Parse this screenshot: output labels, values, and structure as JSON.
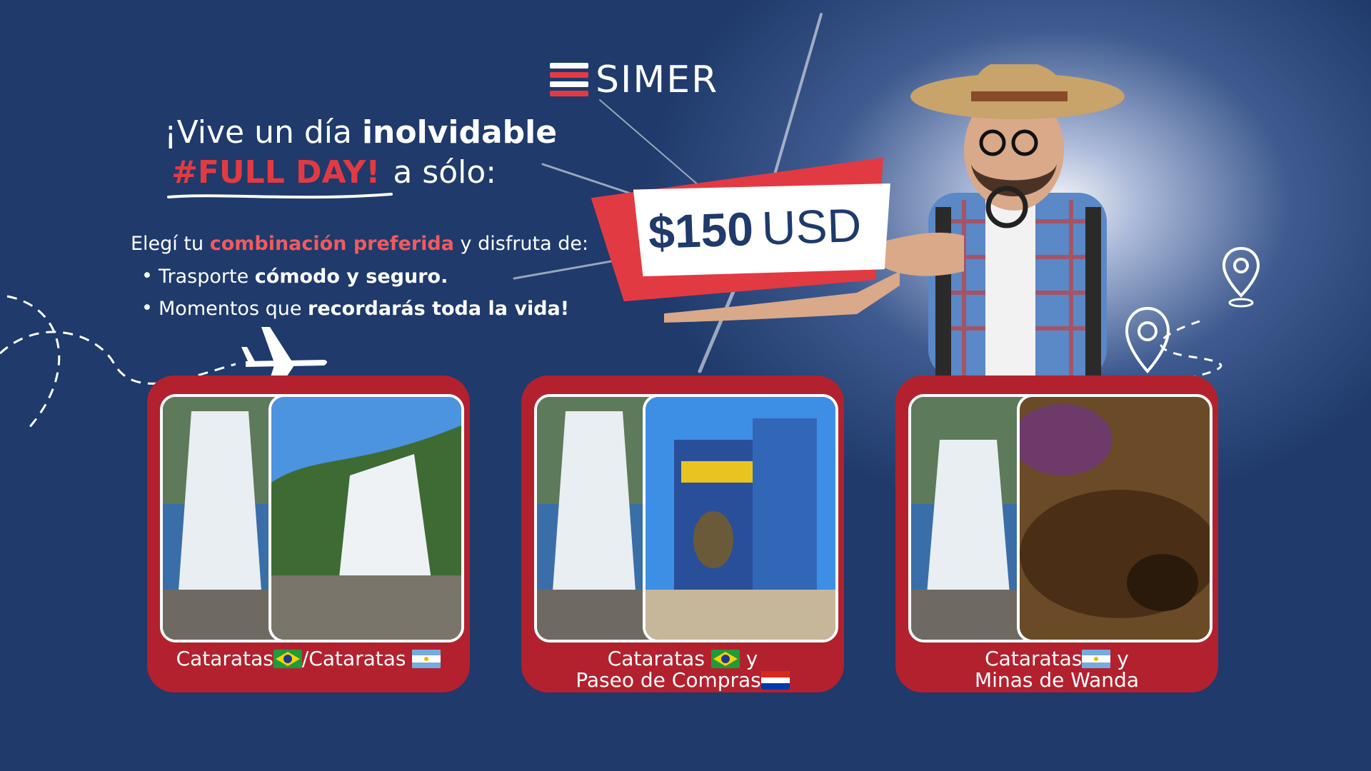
{
  "brand": {
    "name": "SIMER"
  },
  "headline": {
    "line1_a": "¡Vive un día ",
    "line1_b": "inolvidable",
    "tag": "#FULL DAY!",
    "line2_b": "a sólo:"
  },
  "price": {
    "amount": "$150",
    "currency": "USD"
  },
  "description": {
    "a": "Elegí tu ",
    "b": "combinación preferida",
    "c": " y disfruta de:"
  },
  "bullets": [
    {
      "a": "Trasporte ",
      "b": "cómodo y seguro."
    },
    {
      "a": "Momentos que ",
      "b": "recordarás toda la vida!"
    }
  ],
  "cards": [
    {
      "line1": "Cataratas",
      "sep": "/Cataratas",
      "line2": ""
    },
    {
      "line1": "Cataratas",
      "y": "y",
      "line2": "Paseo de Compras"
    },
    {
      "line1": "Cataratas",
      "y": "y",
      "line2": "Minas de Wanda"
    }
  ],
  "colors": {
    "background": "#1f3a6b",
    "accent": "#e23a42",
    "card": "#b3212e"
  }
}
